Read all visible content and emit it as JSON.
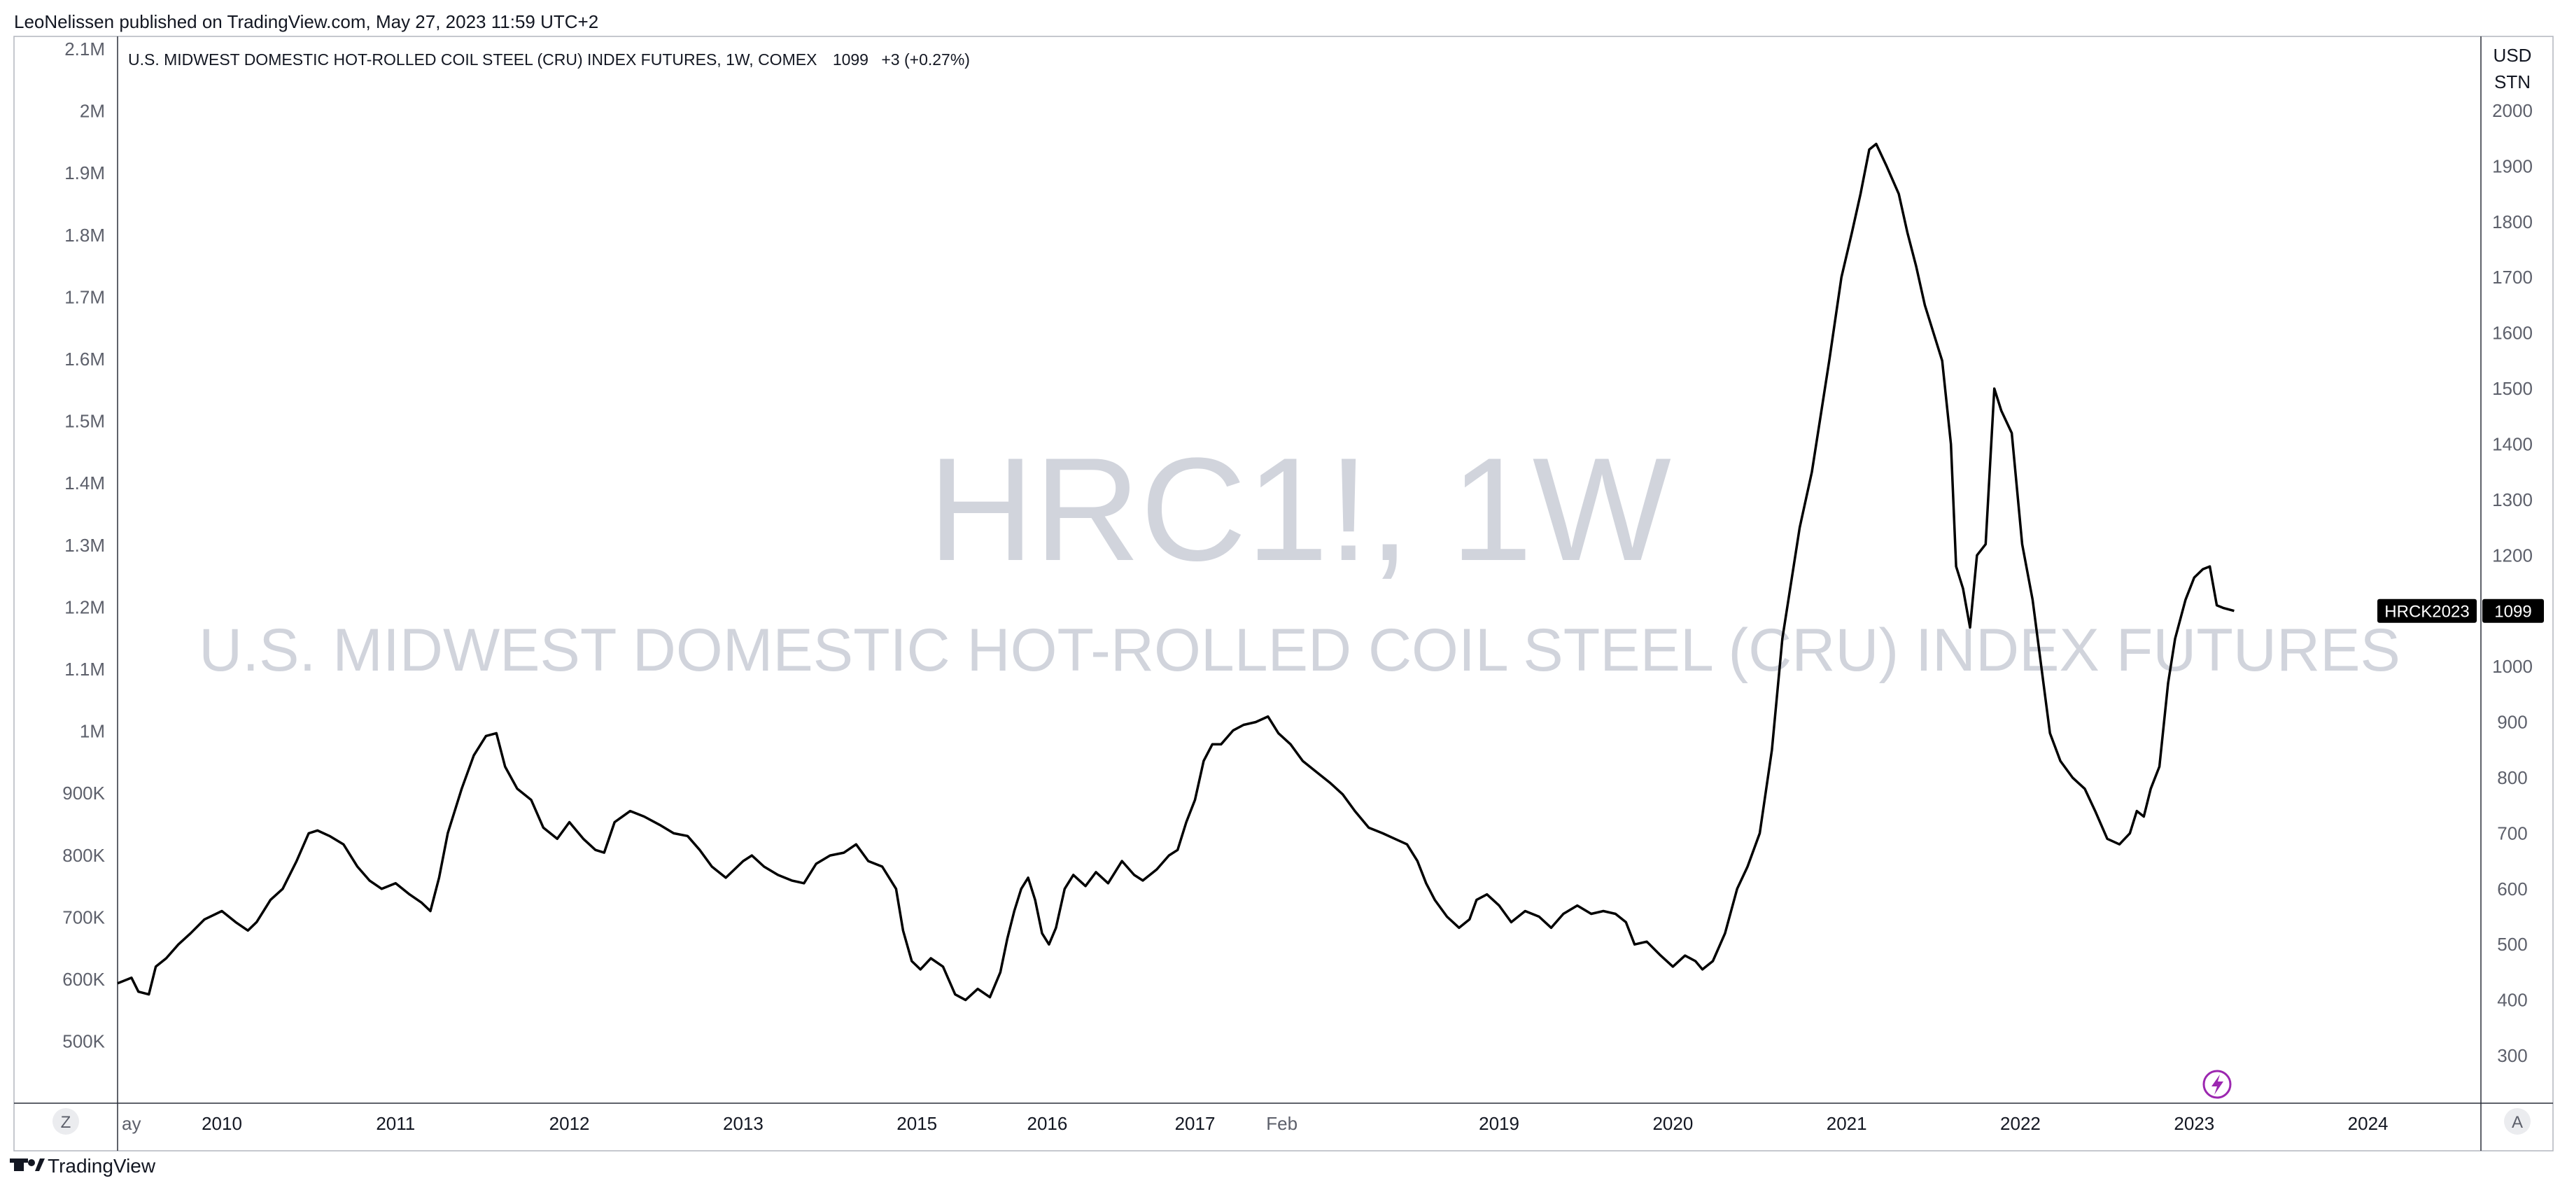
{
  "header": {
    "published_by": "LeoNelissen published on TradingView.com, May 27, 2023 11:59 UTC+2"
  },
  "legend": {
    "title": "U.S. MIDWEST DOMESTIC HOT-ROLLED COIL STEEL (CRU) INDEX FUTURES, 1W, COMEX",
    "last_value": "1099",
    "change": "+3 (+0.27%)"
  },
  "watermark": {
    "symbol": "HRC1!, 1W",
    "description": "U.S. MIDWEST DOMESTIC HOT-ROLLED COIL STEEL (CRU) INDEX FUTURES"
  },
  "price_scale": {
    "currency": "USD",
    "unit": "STN",
    "last_price_tag": "1099",
    "symbol_tag": "HRCK2023"
  },
  "left_scale": {
    "ticks": [
      "2.1M",
      "2M",
      "1.9M",
      "1.8M",
      "1.7M",
      "1.6M",
      "1.5M",
      "1.4M",
      "1.3M",
      "1.2M",
      "1.1M",
      "1M",
      "900K",
      "800K",
      "700K",
      "600K",
      "500K"
    ]
  },
  "controls": {
    "left_button": "Z",
    "right_button": "A"
  },
  "footer": {
    "brand": "TradingView"
  },
  "colors": {
    "line": "#000000",
    "watermark": "#d1d4dc",
    "tag_bg": "#000000",
    "icon_accent": "#9c27b0"
  },
  "icons": {
    "brand_logo": "tradingview-logo-icon",
    "flash": "lightning-icon"
  },
  "chart_data": {
    "type": "line",
    "title": "U.S. MIDWEST DOMESTIC HOT-ROLLED COIL STEEL (CRU) INDEX FUTURES, 1W, COMEX",
    "xlabel": "",
    "ylabel": "",
    "y_unit": "USD / STN",
    "ylim": [
      230,
      2110
    ],
    "grid": false,
    "legend_position": "top-left",
    "x_ticks": [
      {
        "label": "ay",
        "x": 2009.4
      },
      {
        "label": "2010",
        "x": 2010.0
      },
      {
        "label": "2011",
        "x": 2011.0
      },
      {
        "label": "2012",
        "x": 2012.0
      },
      {
        "label": "2013",
        "x": 2013.0
      },
      {
        "label": "2015",
        "x": 2014.0
      },
      {
        "label": "2016",
        "x": 2014.75
      },
      {
        "label": "2017",
        "x": 2015.6
      },
      {
        "label": "Feb",
        "x": 2016.1
      },
      {
        "label": "2019",
        "x": 2017.35
      },
      {
        "label": "2020",
        "x": 2018.35
      },
      {
        "label": "2021",
        "x": 2019.35
      },
      {
        "label": "2022",
        "x": 2020.35
      },
      {
        "label": "2023",
        "x": 2021.35
      },
      {
        "label": "2024",
        "x": 2022.35
      }
    ],
    "y_ticks": [
      2000,
      1900,
      1800,
      1700,
      1600,
      1500,
      1400,
      1300,
      1200,
      1100,
      1000,
      900,
      800,
      700,
      600,
      500,
      400,
      300
    ],
    "series": [
      {
        "points": [
          [
            2009.4,
            430
          ],
          [
            2009.48,
            440
          ],
          [
            2009.52,
            415
          ],
          [
            2009.58,
            410
          ],
          [
            2009.62,
            460
          ],
          [
            2009.68,
            475
          ],
          [
            2009.75,
            500
          ],
          [
            2009.82,
            520
          ],
          [
            2009.9,
            545
          ],
          [
            2010.0,
            560
          ],
          [
            2010.08,
            540
          ],
          [
            2010.15,
            525
          ],
          [
            2010.2,
            540
          ],
          [
            2010.28,
            580
          ],
          [
            2010.35,
            600
          ],
          [
            2010.43,
            650
          ],
          [
            2010.5,
            700
          ],
          [
            2010.55,
            705
          ],
          [
            2010.62,
            695
          ],
          [
            2010.7,
            680
          ],
          [
            2010.78,
            640
          ],
          [
            2010.85,
            615
          ],
          [
            2010.92,
            600
          ],
          [
            2011.0,
            610
          ],
          [
            2011.08,
            590
          ],
          [
            2011.15,
            575
          ],
          [
            2011.2,
            560
          ],
          [
            2011.25,
            620
          ],
          [
            2011.3,
            700
          ],
          [
            2011.38,
            780
          ],
          [
            2011.45,
            840
          ],
          [
            2011.52,
            875
          ],
          [
            2011.58,
            880
          ],
          [
            2011.63,
            820
          ],
          [
            2011.7,
            780
          ],
          [
            2011.78,
            760
          ],
          [
            2011.85,
            710
          ],
          [
            2011.93,
            690
          ],
          [
            2012.0,
            720
          ],
          [
            2012.08,
            690
          ],
          [
            2012.15,
            670
          ],
          [
            2012.2,
            665
          ],
          [
            2012.26,
            720
          ],
          [
            2012.35,
            740
          ],
          [
            2012.43,
            730
          ],
          [
            2012.52,
            715
          ],
          [
            2012.6,
            700
          ],
          [
            2012.68,
            695
          ],
          [
            2012.75,
            670
          ],
          [
            2012.82,
            640
          ],
          [
            2012.9,
            620
          ],
          [
            2013.0,
            650
          ],
          [
            2013.05,
            660
          ],
          [
            2013.12,
            640
          ],
          [
            2013.2,
            625
          ],
          [
            2013.28,
            615
          ],
          [
            2013.35,
            610
          ],
          [
            2013.42,
            645
          ],
          [
            2013.5,
            660
          ],
          [
            2013.58,
            665
          ],
          [
            2013.65,
            680
          ],
          [
            2013.72,
            650
          ],
          [
            2013.8,
            640
          ],
          [
            2013.88,
            600
          ],
          [
            2013.92,
            525
          ],
          [
            2013.97,
            470
          ],
          [
            2014.02,
            455
          ],
          [
            2014.08,
            475
          ],
          [
            2014.15,
            460
          ],
          [
            2014.22,
            410
          ],
          [
            2014.28,
            400
          ],
          [
            2014.35,
            420
          ],
          [
            2014.42,
            405
          ],
          [
            2014.48,
            450
          ],
          [
            2014.52,
            510
          ],
          [
            2014.56,
            560
          ],
          [
            2014.6,
            600
          ],
          [
            2014.64,
            620
          ],
          [
            2014.68,
            580
          ],
          [
            2014.72,
            520
          ],
          [
            2014.76,
            500
          ],
          [
            2014.8,
            530
          ],
          [
            2014.85,
            600
          ],
          [
            2014.9,
            625
          ],
          [
            2014.97,
            605
          ],
          [
            2015.03,
            630
          ],
          [
            2015.1,
            610
          ],
          [
            2015.18,
            650
          ],
          [
            2015.25,
            625
          ],
          [
            2015.3,
            615
          ],
          [
            2015.38,
            635
          ],
          [
            2015.45,
            660
          ],
          [
            2015.5,
            670
          ],
          [
            2015.55,
            720
          ],
          [
            2015.6,
            760
          ],
          [
            2015.65,
            830
          ],
          [
            2015.7,
            860
          ],
          [
            2015.75,
            860
          ],
          [
            2015.82,
            885
          ],
          [
            2015.88,
            895
          ],
          [
            2015.95,
            900
          ],
          [
            2016.02,
            910
          ],
          [
            2016.08,
            880
          ],
          [
            2016.15,
            860
          ],
          [
            2016.22,
            830
          ],
          [
            2016.3,
            810
          ],
          [
            2016.38,
            790
          ],
          [
            2016.45,
            770
          ],
          [
            2016.52,
            740
          ],
          [
            2016.6,
            710
          ],
          [
            2016.68,
            700
          ],
          [
            2016.75,
            690
          ],
          [
            2016.82,
            680
          ],
          [
            2016.88,
            650
          ],
          [
            2016.93,
            610
          ],
          [
            2016.98,
            580
          ],
          [
            2017.05,
            550
          ],
          [
            2017.12,
            530
          ],
          [
            2017.18,
            545
          ],
          [
            2017.22,
            580
          ],
          [
            2017.28,
            590
          ],
          [
            2017.35,
            570
          ],
          [
            2017.42,
            540
          ],
          [
            2017.5,
            560
          ],
          [
            2017.58,
            550
          ],
          [
            2017.65,
            530
          ],
          [
            2017.72,
            555
          ],
          [
            2017.8,
            570
          ],
          [
            2017.88,
            555
          ],
          [
            2017.95,
            560
          ],
          [
            2018.02,
            555
          ],
          [
            2018.08,
            540
          ],
          [
            2018.13,
            500
          ],
          [
            2018.2,
            505
          ],
          [
            2018.28,
            480
          ],
          [
            2018.35,
            460
          ],
          [
            2018.42,
            480
          ],
          [
            2018.48,
            470
          ],
          [
            2018.52,
            455
          ],
          [
            2018.58,
            470
          ],
          [
            2018.65,
            520
          ],
          [
            2018.72,
            600
          ],
          [
            2018.78,
            640
          ],
          [
            2018.85,
            700
          ],
          [
            2018.92,
            850
          ],
          [
            2018.98,
            1050
          ],
          [
            2019.03,
            1150
          ],
          [
            2019.08,
            1250
          ],
          [
            2019.15,
            1350
          ],
          [
            2019.2,
            1450
          ],
          [
            2019.25,
            1550
          ],
          [
            2019.32,
            1700
          ],
          [
            2019.38,
            1780
          ],
          [
            2019.43,
            1850
          ],
          [
            2019.48,
            1930
          ],
          [
            2019.52,
            1940
          ],
          [
            2019.58,
            1900
          ],
          [
            2019.65,
            1850
          ],
          [
            2019.7,
            1780
          ],
          [
            2019.75,
            1720
          ],
          [
            2019.8,
            1650
          ],
          [
            2019.85,
            1600
          ],
          [
            2019.9,
            1550
          ],
          [
            2019.95,
            1400
          ],
          [
            2019.98,
            1180
          ],
          [
            2020.02,
            1140
          ],
          [
            2020.06,
            1070
          ],
          [
            2020.1,
            1200
          ],
          [
            2020.15,
            1220
          ],
          [
            2020.2,
            1500
          ],
          [
            2020.24,
            1460
          ],
          [
            2020.3,
            1420
          ],
          [
            2020.36,
            1220
          ],
          [
            2020.42,
            1120
          ],
          [
            2020.47,
            1000
          ],
          [
            2020.52,
            880
          ],
          [
            2020.58,
            830
          ],
          [
            2020.65,
            800
          ],
          [
            2020.72,
            780
          ],
          [
            2020.78,
            740
          ],
          [
            2020.85,
            690
          ],
          [
            2020.92,
            680
          ],
          [
            2020.98,
            700
          ],
          [
            2021.02,
            740
          ],
          [
            2021.06,
            730
          ],
          [
            2021.1,
            780
          ],
          [
            2021.15,
            820
          ],
          [
            2021.2,
            970
          ],
          [
            2021.24,
            1050
          ],
          [
            2021.3,
            1120
          ],
          [
            2021.35,
            1160
          ],
          [
            2021.4,
            1175
          ],
          [
            2021.44,
            1180
          ],
          [
            2021.48,
            1110
          ],
          [
            2021.52,
            1105
          ],
          [
            2021.58,
            1100
          ]
        ]
      }
    ]
  }
}
